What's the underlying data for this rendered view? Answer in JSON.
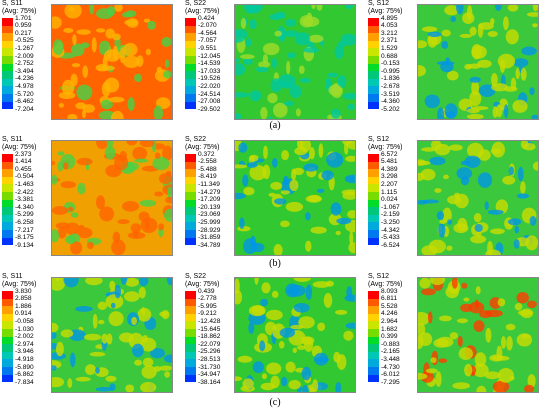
{
  "colormap": [
    "#ff0000",
    "#ff5a00",
    "#ffa000",
    "#ffd200",
    "#c8e600",
    "#78dc00",
    "#00dc28",
    "#00c878",
    "#00c8b4",
    "#00aadc",
    "#0078f0",
    "#0032ff",
    "#0000d2"
  ],
  "rows": [
    {
      "label": "(a)",
      "panels": [
        {
          "name": "s11",
          "title1": "S, S11",
          "title2": "(Avg: 75%)",
          "ticks": [
            "1.701",
            "0.959",
            "0.217",
            "-0.525",
            "-1.267",
            "-2.009",
            "-2.752",
            "-3.494",
            "-4.236",
            "-4.978",
            "-5.720",
            "-6.462",
            "-7.204"
          ],
          "dominant": "#ff6400",
          "texture": "#ffb400",
          "spots": "#46d246"
        },
        {
          "name": "s22",
          "title1": "S, S22",
          "title2": "(Avg: 75%)",
          "ticks": [
            "0.424",
            "-2.070",
            "-4.564",
            "-7.057",
            "-9.551",
            "-12.045",
            "-14.539",
            "-17.033",
            "-19.526",
            "-22.020",
            "-24.514",
            "-27.008",
            "-29.502"
          ],
          "dominant": "#32c832",
          "texture": "#00c8a0",
          "spots": "#a0dc28"
        },
        {
          "name": "s12",
          "title1": "S, S12",
          "title2": "(Avg: 75%)",
          "ticks": [
            "4.895",
            "4.053",
            "3.212",
            "2.371",
            "1.529",
            "0.688",
            "-0.153",
            "-0.995",
            "-1.836",
            "-2.678",
            "-3.519",
            "-4.360",
            "-5.202"
          ],
          "dominant": "#3cc83c",
          "texture": "#c8dc00",
          "spots": "#0096e6"
        }
      ]
    },
    {
      "label": "(b)",
      "panels": [
        {
          "name": "s11",
          "title1": "S, S11",
          "title2": "(Avg: 75%)",
          "ticks": [
            "2.373",
            "1.414",
            "0.455",
            "-0.504",
            "-1.463",
            "-2.422",
            "-3.381",
            "-4.340",
            "-5.299",
            "-6.258",
            "-7.217",
            "-8.175",
            "-9.134"
          ],
          "dominant": "#f0a000",
          "texture": "#ff6400",
          "spots": "#46d246"
        },
        {
          "name": "s22",
          "title1": "S, S22",
          "title2": "(Avg: 75%)",
          "ticks": [
            "0.372",
            "-2.558",
            "-5.488",
            "-8.419",
            "-11.349",
            "-14.279",
            "-17.209",
            "-20.139",
            "-23.069",
            "-25.999",
            "-28.929",
            "-31.859",
            "-34.789"
          ],
          "dominant": "#32c832",
          "texture": "#c8dc00",
          "spots": "#0096e6"
        },
        {
          "name": "s12",
          "title1": "S, S12",
          "title2": "(Avg: 75%)",
          "ticks": [
            "6.572",
            "5.481",
            "4.389",
            "3.298",
            "2.207",
            "1.115",
            "0.024",
            "-1.067",
            "-2.159",
            "-3.250",
            "-4.342",
            "-5.433",
            "-6.524"
          ],
          "dominant": "#3cc83c",
          "texture": "#c8dc00",
          "spots": "#0096e6"
        }
      ]
    },
    {
      "label": "(c)",
      "panels": [
        {
          "name": "s11",
          "title1": "S, S11",
          "title2": "(Avg: 75%)",
          "ticks": [
            "3.830",
            "2.858",
            "1.886",
            "0.914",
            "-0.058",
            "-1.030",
            "-2.002",
            "-2.974",
            "-3.946",
            "-4.918",
            "-5.890",
            "-6.862",
            "-7.834"
          ],
          "dominant": "#3cc83c",
          "texture": "#c8dc00",
          "spots": "#0096e6"
        },
        {
          "name": "s22",
          "title1": "S, S22",
          "title2": "(Avg: 75%)",
          "ticks": [
            "0.439",
            "-2.778",
            "-5.995",
            "-9.212",
            "-12.428",
            "-15.645",
            "-18.862",
            "-22.079",
            "-25.296",
            "-28.513",
            "-31.730",
            "-34.947",
            "-38.164"
          ],
          "dominant": "#32c832",
          "texture": "#c8dc00",
          "spots": "#0096e6"
        },
        {
          "name": "s12",
          "title1": "S, S12",
          "title2": "(Avg: 75%)",
          "ticks": [
            "8.093",
            "6.811",
            "5.528",
            "4.246",
            "2.964",
            "1.682",
            "0.399",
            "-0.883",
            "-2.165",
            "-3.448",
            "-4.730",
            "-6.012",
            "-7.295"
          ],
          "dominant": "#3cc83c",
          "texture": "#c8dc00",
          "spots": "#ff3c00"
        }
      ]
    }
  ]
}
